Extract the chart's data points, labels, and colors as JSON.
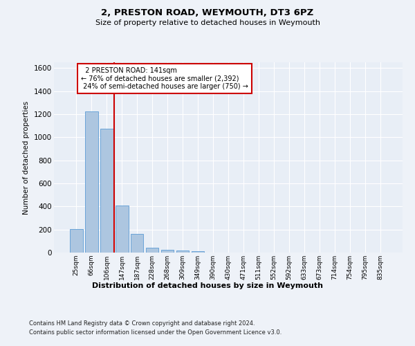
{
  "title_line1": "2, PRESTON ROAD, WEYMOUTH, DT3 6PZ",
  "title_line2": "Size of property relative to detached houses in Weymouth",
  "xlabel": "Distribution of detached houses by size in Weymouth",
  "ylabel": "Number of detached properties",
  "categories": [
    "25sqm",
    "66sqm",
    "106sqm",
    "147sqm",
    "187sqm",
    "228sqm",
    "268sqm",
    "309sqm",
    "349sqm",
    "390sqm",
    "430sqm",
    "471sqm",
    "511sqm",
    "552sqm",
    "592sqm",
    "633sqm",
    "673sqm",
    "714sqm",
    "754sqm",
    "795sqm",
    "835sqm"
  ],
  "values": [
    205,
    1225,
    1075,
    410,
    160,
    45,
    27,
    17,
    12,
    0,
    0,
    0,
    0,
    0,
    0,
    0,
    0,
    0,
    0,
    0,
    0
  ],
  "bar_color": "#adc6e0",
  "bar_edge_color": "#5b9bd5",
  "ylim": [
    0,
    1650
  ],
  "yticks": [
    0,
    200,
    400,
    600,
    800,
    1000,
    1200,
    1400,
    1600
  ],
  "property_size_label": "2 PRESTON ROAD: 141sqm",
  "pct_smaller": 76,
  "n_smaller": 2392,
  "pct_larger": 24,
  "n_larger": 750,
  "footer_line1": "Contains HM Land Registry data © Crown copyright and database right 2024.",
  "footer_line2": "Contains public sector information licensed under the Open Government Licence v3.0.",
  "background_color": "#eef2f8",
  "plot_bg_color": "#e8eef6",
  "grid_color": "#ffffff",
  "annotation_color": "#cc0000"
}
